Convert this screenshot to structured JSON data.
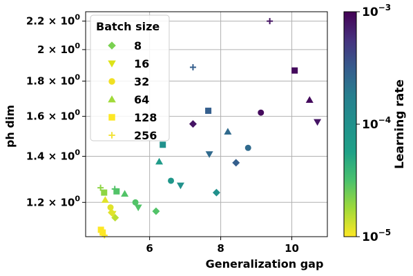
{
  "chart_data": {
    "type": "scatter",
    "title": "",
    "xlabel": "Generalization gap",
    "ylabel": "ph dim",
    "xlim": [
      4.2,
      11.0
    ],
    "ylim": [
      1.07,
      2.27
    ],
    "yscale": "log",
    "x_ticks": [
      {
        "value": 6,
        "label": "6"
      },
      {
        "value": 8,
        "label": "8"
      },
      {
        "value": 10,
        "label": "10"
      }
    ],
    "y_ticks": [
      {
        "value": 1.2,
        "mant": "1.2",
        "exp": "0"
      },
      {
        "value": 1.4,
        "mant": "1.4",
        "exp": "0"
      },
      {
        "value": 1.6,
        "mant": "1.6",
        "exp": "0"
      },
      {
        "value": 1.8,
        "mant": "1.8",
        "exp": "0"
      },
      {
        "value": 2.0,
        "mant": "2",
        "exp": "0"
      },
      {
        "value": 2.2,
        "mant": "2.2",
        "exp": "0"
      }
    ],
    "grid": true,
    "legend": {
      "title": "Batch size",
      "placement": "top-left",
      "entries": [
        {
          "label": "8",
          "marker": "diamond"
        },
        {
          "label": "16",
          "marker": "triangle-down"
        },
        {
          "label": "32",
          "marker": "circle"
        },
        {
          "label": "64",
          "marker": "triangle-up"
        },
        {
          "label": "128",
          "marker": "square"
        },
        {
          "label": "256",
          "marker": "plus"
        }
      ]
    },
    "colorbar": {
      "label": "Learning rate",
      "scale": "log",
      "range": [
        1e-05,
        0.001
      ],
      "colormap": "viridis",
      "ticks": [
        {
          "value": 0.001,
          "mant": "10",
          "exp": "−3"
        },
        {
          "value": 0.0001,
          "mant": "10",
          "exp": "−4"
        },
        {
          "value": 1e-05,
          "mant": "10",
          "exp": "−5"
        }
      ]
    },
    "points": [
      {
        "batch": "8",
        "x": 4.93,
        "y": 1.16,
        "lr": 1.2e-05
      },
      {
        "batch": "8",
        "x": 5.03,
        "y": 1.14,
        "lr": 1.5e-05
      },
      {
        "batch": "8",
        "x": 6.18,
        "y": 1.165,
        "lr": 3e-05
      },
      {
        "batch": "8",
        "x": 7.88,
        "y": 1.24,
        "lr": 0.0001
      },
      {
        "batch": "8",
        "x": 8.43,
        "y": 1.37,
        "lr": 0.0003
      },
      {
        "batch": "8",
        "x": 7.22,
        "y": 1.56,
        "lr": 0.0008
      },
      {
        "batch": "16",
        "x": 4.96,
        "y": 1.155,
        "lr": 1.2e-05
      },
      {
        "batch": "16",
        "x": 5.68,
        "y": 1.18,
        "lr": 3e-05
      },
      {
        "batch": "16",
        "x": 6.87,
        "y": 1.27,
        "lr": 0.0001
      },
      {
        "batch": "16",
        "x": 7.68,
        "y": 1.41,
        "lr": 0.00025
      },
      {
        "batch": "16",
        "x": 10.72,
        "y": 1.57,
        "lr": 0.0008
      },
      {
        "batch": "32",
        "x": 4.9,
        "y": 1.18,
        "lr": 1.2e-05
      },
      {
        "batch": "32",
        "x": 5.6,
        "y": 1.2,
        "lr": 3e-05
      },
      {
        "batch": "32",
        "x": 6.6,
        "y": 1.29,
        "lr": 8e-05
      },
      {
        "batch": "32",
        "x": 8.77,
        "y": 1.44,
        "lr": 0.00025
      },
      {
        "batch": "32",
        "x": 9.13,
        "y": 1.62,
        "lr": 0.0009
      },
      {
        "batch": "64",
        "x": 4.75,
        "y": 1.21,
        "lr": 1.2e-05
      },
      {
        "batch": "64",
        "x": 5.3,
        "y": 1.235,
        "lr": 3e-05
      },
      {
        "batch": "64",
        "x": 6.27,
        "y": 1.375,
        "lr": 7e-05
      },
      {
        "batch": "64",
        "x": 8.2,
        "y": 1.52,
        "lr": 0.00025
      },
      {
        "batch": "64",
        "x": 10.5,
        "y": 1.69,
        "lr": 0.0009
      },
      {
        "batch": "128",
        "x": 4.72,
        "y": 1.24,
        "lr": 2e-05
      },
      {
        "batch": "128",
        "x": 5.07,
        "y": 1.245,
        "lr": 3e-05
      },
      {
        "batch": "128",
        "x": 6.37,
        "y": 1.455,
        "lr": 0.0001
      },
      {
        "batch": "128",
        "x": 7.65,
        "y": 1.63,
        "lr": 0.0003
      },
      {
        "batch": "128",
        "x": 10.08,
        "y": 1.865,
        "lr": 0.0009
      },
      {
        "batch": "128",
        "x": 4.63,
        "y": 1.095,
        "lr": 1e-05
      },
      {
        "batch": "128",
        "x": 4.68,
        "y": 1.085,
        "lr": 1e-05
      },
      {
        "batch": "256",
        "x": 4.62,
        "y": 1.26,
        "lr": 2e-05
      },
      {
        "batch": "256",
        "x": 5.02,
        "y": 1.255,
        "lr": 3e-05
      },
      {
        "batch": "256",
        "x": 7.22,
        "y": 1.885,
        "lr": 0.0003
      },
      {
        "batch": "256",
        "x": 9.38,
        "y": 2.2,
        "lr": 0.0008
      },
      {
        "batch": "256",
        "x": 4.68,
        "y": 1.08,
        "lr": 1e-05
      },
      {
        "batch": "256",
        "x": 4.73,
        "y": 1.075,
        "lr": 1e-05
      }
    ]
  }
}
